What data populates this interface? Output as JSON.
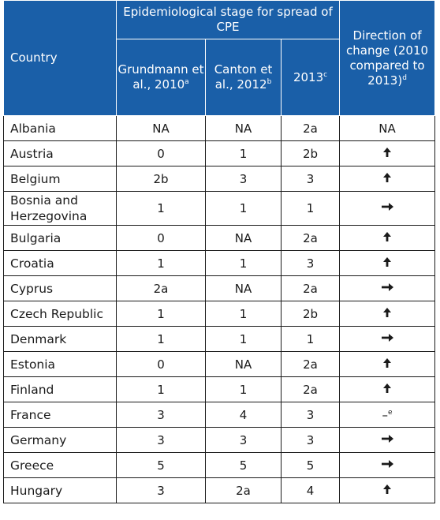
{
  "header": {
    "country": "Country",
    "group": "Epidemiological stage for spread of CPE",
    "grundmann": "Grundmann et al., 2010",
    "grundmann_sup": "a",
    "canton": "Canton et al., 2012",
    "canton_sup": "b",
    "y2013": "2013",
    "y2013_sup": "c",
    "direction": "Direction of change (2010 compared to 2013)",
    "direction_sup": "d"
  },
  "rows": [
    {
      "country": "Albania",
      "g2010": "NA",
      "c2012": "NA",
      "y2013": "2a",
      "dir": "NA",
      "dir_type": "text"
    },
    {
      "country": "Austria",
      "g2010": "0",
      "c2012": "1",
      "y2013": "2b",
      "dir": "up-arrow",
      "dir_type": "up"
    },
    {
      "country": "Belgium",
      "g2010": "2b",
      "c2012": "3",
      "y2013": "3",
      "dir": "up-arrow",
      "dir_type": "up"
    },
    {
      "country": "Bosnia and Herzegovina",
      "g2010": "1",
      "c2012": "1",
      "y2013": "1",
      "dir": "right-arrow",
      "dir_type": "right"
    },
    {
      "country": "Bulgaria",
      "g2010": "0",
      "c2012": "NA",
      "y2013": "2a",
      "dir": "up-arrow",
      "dir_type": "up"
    },
    {
      "country": "Croatia",
      "g2010": "1",
      "c2012": "1",
      "y2013": "3",
      "dir": "up-arrow",
      "dir_type": "up"
    },
    {
      "country": "Cyprus",
      "g2010": "2a",
      "c2012": "NA",
      "y2013": "2a",
      "dir": "right-arrow",
      "dir_type": "right"
    },
    {
      "country": "Czech Republic",
      "g2010": "1",
      "c2012": "1",
      "y2013": "2b",
      "dir": "up-arrow",
      "dir_type": "up"
    },
    {
      "country": "Denmark",
      "g2010": "1",
      "c2012": "1",
      "y2013": "1",
      "dir": "right-arrow",
      "dir_type": "right"
    },
    {
      "country": "Estonia",
      "g2010": "0",
      "c2012": "NA",
      "y2013": "2a",
      "dir": "up-arrow",
      "dir_type": "up"
    },
    {
      "country": "Finland",
      "g2010": "1",
      "c2012": "1",
      "y2013": "2a",
      "dir": "up-arrow",
      "dir_type": "up"
    },
    {
      "country": "France",
      "g2010": "3",
      "c2012": "4",
      "y2013": "3",
      "dir": "–",
      "dir_sup": "e",
      "dir_type": "dash"
    },
    {
      "country": "Germany",
      "g2010": "3",
      "c2012": "3",
      "y2013": "3",
      "dir": "right-arrow",
      "dir_type": "right"
    },
    {
      "country": "Greece",
      "g2010": "5",
      "c2012": "5",
      "y2013": "5",
      "dir": "right-arrow",
      "dir_type": "right"
    },
    {
      "country": "Hungary",
      "g2010": "3",
      "c2012": "2a",
      "y2013": "4",
      "dir": "up-arrow",
      "dir_type": "up"
    }
  ]
}
